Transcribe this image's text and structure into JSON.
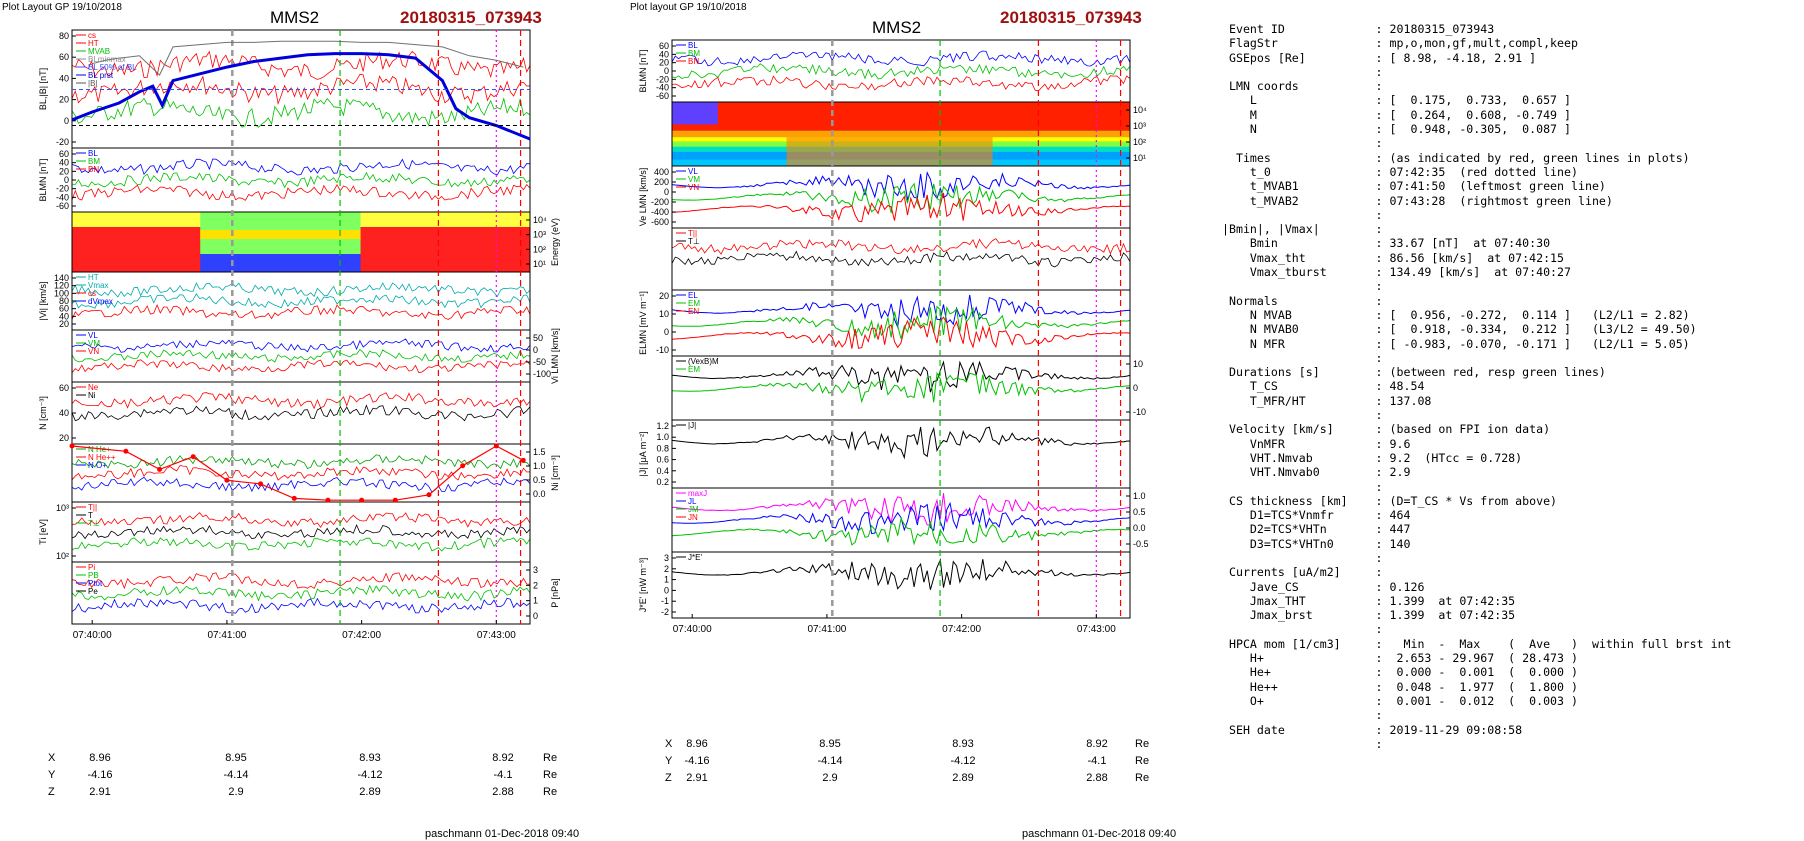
{
  "left": {
    "layout_label": "Plot Layout GP 19/10/2018",
    "spacecraft": "MMS2",
    "event": "20180315_073943",
    "footer": "paschmann 01-Dec-2018 09:40",
    "time_ticks": [
      "07:40:00",
      "07:41:00",
      "07:42:00",
      "07:43:00"
    ],
    "coord_rows": [
      {
        "label": "X",
        "values": [
          "8.96",
          "8.95",
          "8.93",
          "8.92"
        ],
        "unit": "Re"
      },
      {
        "label": "Y",
        "values": [
          "-4.16",
          "-4.14",
          "-4.12",
          "-4.1"
        ],
        "unit": "Re"
      },
      {
        "label": "Z",
        "values": [
          "2.91",
          "2.9",
          "2.89",
          "2.88"
        ],
        "unit": "Re"
      }
    ],
    "panels": [
      {
        "id": "b",
        "ylabel": "BL,|B| [nT]",
        "ticks_left": [
          "80",
          "60",
          "40",
          "20",
          "0",
          "-20"
        ],
        "ticks_right": [],
        "legend": [
          {
            "text": "cs",
            "color": "#ff0000"
          },
          {
            "text": "HT",
            "color": "#ff0000"
          },
          {
            "text": "MVAB",
            "color": "#00c000"
          },
          {
            "text": "BLminmax",
            "color": "#909090"
          },
          {
            "text": "BL 50% of BL",
            "color": "#3050ff"
          },
          {
            "text": "BL prst",
            "color": "#0000cc"
          },
          {
            "text": "|B|",
            "color": "#555555"
          }
        ]
      },
      {
        "id": "blmn",
        "ylabel": "BLMN [nT]",
        "ticks_left": [
          "60",
          "40",
          "20",
          "0",
          "-20",
          "-40",
          "-60"
        ],
        "ticks_right": [],
        "legend": [
          {
            "text": "BL",
            "color": "#0000ff"
          },
          {
            "text": "BM",
            "color": "#00c000"
          },
          {
            "text": "BN",
            "color": "#ff0000"
          }
        ]
      },
      {
        "id": "spec",
        "ylabel": "",
        "ticks_left": [],
        "ticks_right": [
          "10⁴",
          "10³",
          "10²",
          "10¹"
        ],
        "rlabel": "Energy (eV)",
        "legend": []
      },
      {
        "id": "vi",
        "ylabel": "|Vi| [km/s]",
        "ticks_left": [
          "140",
          "120",
          "100",
          "80",
          "60",
          "40",
          "20"
        ],
        "ticks_right": [],
        "legend": [
          {
            "text": "HT",
            "color": "#00aaaa"
          },
          {
            "text": "Vmax",
            "color": "#00aaaa"
          },
          {
            "text": "cs",
            "color": "#ff0000"
          },
          {
            "text": "dVmax",
            "color": "#0000ff"
          }
        ]
      },
      {
        "id": "vilmn",
        "ylabel": "",
        "ticks_left": [],
        "ticks_right": [
          "50",
          "0",
          "-50",
          "-100"
        ],
        "rlabel": "Vi LMN [km/s]",
        "legend": [
          {
            "text": "VL",
            "color": "#0000ff"
          },
          {
            "text": "VM",
            "color": "#00c000"
          },
          {
            "text": "VN",
            "color": "#ff0000"
          }
        ]
      },
      {
        "id": "n",
        "ylabel": "N [cm⁻³]",
        "ticks_left": [
          "60",
          "40",
          "20"
        ],
        "ticks_right": [],
        "legend": [
          {
            "text": "Ne",
            "color": "#ff0000"
          },
          {
            "text": "Ni",
            "color": "#000000"
          }
        ]
      },
      {
        "id": "hpca",
        "ylabel": "",
        "ticks_left": [],
        "ticks_right": [
          "1.5",
          "1.0",
          "0.5",
          "0.0"
        ],
        "rlabel": "Ni [cm⁻³]",
        "legend": [
          {
            "text": "N He+",
            "color": "#00a000"
          },
          {
            "text": "N He++",
            "color": "#ff0000"
          },
          {
            "text": "N O+",
            "color": "#0000ff"
          }
        ]
      },
      {
        "id": "ti",
        "ylabel": "Ti [eV]",
        "ticks_left": [
          "10³",
          "10²"
        ],
        "ticks_right": [],
        "legend": [
          {
            "text": "T||",
            "color": "#ff0000"
          },
          {
            "text": "T",
            "color": "#000000"
          },
          {
            "text": "T⊥",
            "color": "#00c000"
          }
        ]
      },
      {
        "id": "p",
        "ylabel": "",
        "ticks_left": [],
        "ticks_right": [
          "3",
          "2",
          "1",
          "0"
        ],
        "rlabel": "P [nPa]",
        "legend": [
          {
            "text": "Pi",
            "color": "#ff0000"
          },
          {
            "text": "PB",
            "color": "#00c000"
          },
          {
            "text": "Ptot",
            "color": "#0000ff"
          },
          {
            "text": "Pe",
            "color": "#000000"
          }
        ]
      }
    ]
  },
  "middle": {
    "layout_label": "Plot layout GP 19/10/2018",
    "spacecraft": "MMS2",
    "event": "20180315_073943",
    "footer": "paschmann 01-Dec-2018 09:40",
    "time_ticks": [
      "07:40:00",
      "07:41:00",
      "07:42:00",
      "07:43:00"
    ],
    "coord_rows": [
      {
        "label": "X",
        "values": [
          "8.96",
          "8.95",
          "8.93",
          "8.92"
        ],
        "unit": "Re"
      },
      {
        "label": "Y",
        "values": [
          "-4.16",
          "-4.14",
          "-4.12",
          "-4.1"
        ],
        "unit": "Re"
      },
      {
        "label": "Z",
        "values": [
          "2.91",
          "2.9",
          "2.89",
          "2.88"
        ],
        "unit": "Re"
      }
    ],
    "panels": [
      {
        "id": "blmn",
        "ylabel": "BLMN [nT]",
        "ticks_left": [
          "60",
          "40",
          "20",
          "0",
          "-20",
          "-40",
          "-60"
        ],
        "ticks_right": [],
        "legend": [
          {
            "text": "BL",
            "color": "#0000ff"
          },
          {
            "text": "BM",
            "color": "#00c000"
          },
          {
            "text": "BN",
            "color": "#ff0000"
          }
        ]
      },
      {
        "id": "spec",
        "ylabel": "",
        "ticks_left": [],
        "ticks_right": [
          "10⁴",
          "10³",
          "10²",
          "10¹"
        ],
        "rlabel": "Energy (eV)",
        "legend": []
      },
      {
        "id": "ve",
        "ylabel": "Ve LMN [km/s]",
        "ticks_left": [
          "400",
          "200",
          "0",
          "-200",
          "-400",
          "-600"
        ],
        "ticks_right": [],
        "legend": [
          {
            "text": "VL",
            "color": "#0000ff"
          },
          {
            "text": "VM",
            "color": "#00c000"
          },
          {
            "text": "VN",
            "color": "#ff0000"
          }
        ]
      },
      {
        "id": "te",
        "ylabel": "",
        "ticks_left": [],
        "ticks_right": [],
        "rlabel": "Te [eV]",
        "legend": [
          {
            "text": "T||",
            "color": "#ff0000"
          },
          {
            "text": "T⊥",
            "color": "#000000"
          }
        ]
      },
      {
        "id": "elmn",
        "ylabel": "ELMN [mV m⁻¹]",
        "ticks_left": [
          "20",
          "10",
          "0",
          "-10"
        ],
        "ticks_right": [],
        "legend": [
          {
            "text": "EL",
            "color": "#0000ff"
          },
          {
            "text": "EM",
            "color": "#00c000"
          },
          {
            "text": "EN",
            "color": "#ff0000"
          }
        ]
      },
      {
        "id": "em",
        "ylabel": "",
        "ticks_left": [],
        "ticks_right": [
          "10",
          "0",
          "-10"
        ],
        "rlabel": "EM [mV m⁻¹]",
        "legend": [
          {
            "text": "(VexB)M",
            "color": "#000000"
          },
          {
            "text": "EM",
            "color": "#00c000"
          }
        ]
      },
      {
        "id": "j",
        "ylabel": "|J| [μA m⁻²]",
        "ticks_left": [
          "1.2",
          "1.0",
          "0.8",
          "0.6",
          "0.4",
          "0.2"
        ],
        "ticks_right": [],
        "legend": [
          {
            "text": "|J|",
            "color": "#000000"
          }
        ]
      },
      {
        "id": "jlmn",
        "ylabel": "",
        "ticks_left": [],
        "ticks_right": [
          "1.0",
          "0.5",
          "0.0",
          "-0.5"
        ],
        "rlabel": "J [μA m⁻²]",
        "legend": [
          {
            "text": "maxJ",
            "color": "#ff00ff"
          },
          {
            "text": "JL",
            "color": "#0000ff"
          },
          {
            "text": "JM",
            "color": "#00c000"
          },
          {
            "text": "JN",
            "color": "#ff0000"
          }
        ]
      },
      {
        "id": "je",
        "ylabel": "J*E' [nW m⁻³]",
        "ticks_left": [
          "3",
          "2",
          "1",
          "0",
          "-1",
          "-2"
        ],
        "ticks_right": [],
        "legend": [
          {
            "text": "J*E'",
            "color": "#000000"
          }
        ]
      }
    ]
  },
  "summary_lines": [
    " Event ID             : 20180315_073943",
    " FlagStr              : mp,o,mon,gf,mult,compl,keep",
    " GSEpos [Re]          : [ 8.98, -4.18, 2.91 ]",
    "                      :",
    " LMN coords           :",
    "    L                 : [  0.175,  0.733,  0.657 ]",
    "    M                 : [  0.264,  0.608, -0.749 ]",
    "    N                 : [  0.948, -0.305,  0.087 ]",
    "                      :",
    "  Times               : (as indicated by red, green lines in plots)",
    "    t_0               : 07:42:35  (red dotted line)",
    "    t_MVAB1           : 07:41:50  (leftmost green line)",
    "    t_MVAB2           : 07:43:28  (rightmost green line)",
    "                      :",
    "|Bmin|, |Vmax|        :",
    "    Bmin              : 33.67 [nT]  at 07:40:30",
    "    Vmax_tht          : 86.56 [km/s]  at 07:42:15",
    "    Vmax_tburst       : 134.49 [km/s]  at 07:40:27",
    "                      :",
    " Normals              :",
    "    N MVAB            : [  0.956, -0.272,  0.114 ]   (L2/L1 = 2.82)",
    "    N MVAB0           : [  0.918, -0.334,  0.212 ]   (L3/L2 = 49.50)",
    "    N MFR             : [ -0.983, -0.070, -0.171 ]   (L2/L1 = 5.05)",
    "                      :",
    " Durations [s]        : (between red, resp green lines)",
    "    T_CS              : 48.54",
    "    T_MFR/HT          : 137.08",
    "                      :",
    " Velocity [km/s]      : (based on FPI ion data)",
    "    VnMFR             : 9.6",
    "    VHT.Nmvab         : 9.2  (HTcc = 0.728)",
    "    VHT.Nmvab0        : 2.9",
    "                      :",
    " CS thickness [km]    : (D=T_CS * Vs from above)",
    "    D1=TCS*Vnmfr      : 464",
    "    D2=TCS*VHTn       : 447",
    "    D3=TCS*VHTn0      : 140",
    "                      :",
    " Currents [uA/m2]     :",
    "    Jave_CS           : 0.126",
    "    Jmax_THT          : 1.399  at 07:42:35",
    "    Jmax_brst         : 1.399  at 07:42:35",
    "                      :",
    " HPCA mom [1/cm3]     :   Min  -  Max    (  Ave   )  within full brst int",
    "    H+                :  2.653 - 29.967  ( 28.473 )",
    "    He+               :  0.000 -  0.001  (  0.000 )",
    "    He++              :  0.048 -  1.977  (  1.800 )",
    "    O+                :  0.001 -  0.012  (  0.003 )",
    "                      :",
    " SEH date             : 2019-11-29 09:08:58",
    "                      :"
  ],
  "colors": {
    "event": "#a01010",
    "red": "#ff0000",
    "green": "#00c000",
    "blue": "#0000ff",
    "magenta": "#ff00ff"
  },
  "chart_data": [
    {
      "type": "line",
      "title": "MMS2 20180315_073943",
      "x_ticks": [
        "07:40:00",
        "07:41:00",
        "07:42:00",
        "07:43:00"
      ],
      "x_minutes_range": [
        -0.15,
        3.25
      ],
      "panels": [
        {
          "name": "BL,|B| [nT]",
          "ylim": [
            -20,
            85
          ],
          "series": [
            {
              "name": "|B|",
              "x": [
                0,
                0.1,
                0.2,
                0.35,
                0.5,
                0.6,
                0.8,
                1.0,
                1.2,
                1.4,
                1.6,
                1.8,
                2.0,
                2.2,
                2.4,
                2.6,
                2.8,
                3.0,
                3.2
              ],
              "y": [
                55,
                58,
                60,
                62,
                45,
                70,
                72,
                74,
                74,
                75,
                75,
                75,
                74,
                74,
                72,
                70,
                62,
                58,
                52
              ]
            },
            {
              "name": "BL prst",
              "x": [
                -0.15,
                0.0,
                0.2,
                0.35,
                0.45,
                0.52,
                0.6,
                0.8,
                1.0,
                1.2,
                1.4,
                1.6,
                1.8,
                2.0,
                2.2,
                2.4,
                2.6,
                2.7,
                2.8,
                3.0,
                3.25
              ],
              "y": [
                5,
                12,
                20,
                30,
                35,
                18,
                40,
                46,
                52,
                57,
                60,
                63,
                64,
                64,
                63,
                60,
                40,
                15,
                7,
                0,
                -12
              ]
            }
          ]
        },
        {
          "name": "BLMN [nT]",
          "ylim": [
            -70,
            70
          ],
          "series": [
            {
              "name": "BL",
              "x": [
                0,
                0.5,
                1.0,
                1.5,
                2.0,
                2.5,
                2.8,
                3.2
              ],
              "y": [
                20,
                35,
                52,
                60,
                62,
                55,
                10,
                -5
              ]
            },
            {
              "name": "BM",
              "x": [
                0,
                0.5,
                1.0,
                1.5,
                2.0,
                2.5,
                3.2
              ],
              "y": [
                -10,
                -20,
                -15,
                -10,
                -20,
                -15,
                -30
              ]
            },
            {
              "name": "BN",
              "x": [
                0,
                0.5,
                1.0,
                1.5,
                2.0,
                2.5,
                3.2
              ],
              "y": [
                -5,
                5,
                0,
                5,
                0,
                0,
                -5
              ]
            }
          ]
        },
        {
          "name": "HPCA N [cm-3]",
          "ylim": [
            0,
            1.6
          ],
          "series": [
            {
              "name": "N He++",
              "x": [
                -0.15,
                0.25,
                0.5,
                0.75,
                1.0,
                1.25,
                1.5,
                1.75,
                2.0,
                2.25,
                2.5,
                2.75,
                3.0,
                3.2
              ],
              "y": [
                1.9,
                1.4,
                0.9,
                1.25,
                0.6,
                0.5,
                0.1,
                0.05,
                0.05,
                0.05,
                0.2,
                1.0,
                1.6,
                1.15
              ]
            }
          ]
        }
      ],
      "markers": [
        {
          "kind": "green-dashed",
          "x": 1.84
        },
        {
          "kind": "gray-dashed",
          "x": 1.04
        },
        {
          "kind": "red-dashed",
          "x": 2.57
        },
        {
          "kind": "magenta-dotted",
          "x": 3.0
        },
        {
          "kind": "red-dashed",
          "x": 3.18
        }
      ]
    }
  ]
}
